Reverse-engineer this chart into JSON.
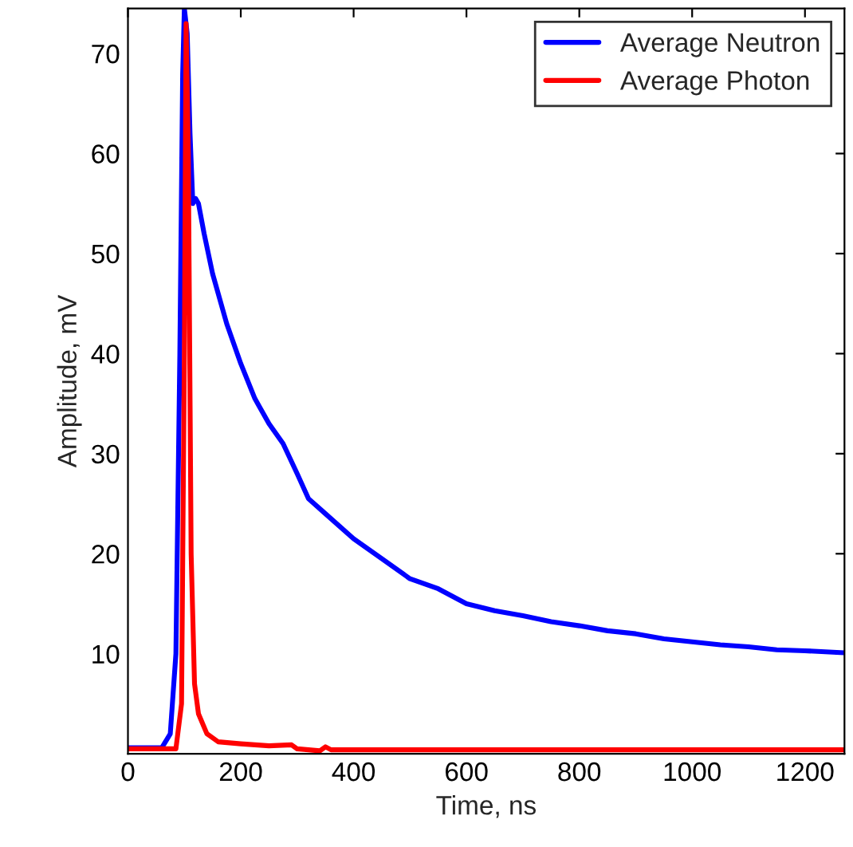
{
  "chart_data": {
    "type": "line",
    "xlabel": "Time, ns",
    "ylabel": "Amplitude, mV",
    "xlim": [
      0,
      1270
    ],
    "ylim": [
      0,
      74.5
    ],
    "xticks": [
      0,
      200,
      400,
      600,
      800,
      1000,
      1200
    ],
    "yticks": [
      10,
      20,
      30,
      40,
      50,
      60,
      70
    ],
    "legend": "top right",
    "grid": false,
    "series": [
      {
        "name": "Average Neutron",
        "color": "#0000ff",
        "x": [
          0,
          60,
          75,
          85,
          92,
          97,
          100,
          105,
          110,
          115,
          120,
          125,
          135,
          150,
          175,
          200,
          225,
          250,
          275,
          300,
          320,
          350,
          400,
          450,
          500,
          550,
          600,
          650,
          700,
          750,
          800,
          850,
          900,
          950,
          1000,
          1050,
          1100,
          1150,
          1200,
          1270
        ],
        "values": [
          0.6,
          0.6,
          2,
          10,
          40,
          68,
          74.5,
          72,
          62,
          55,
          55.5,
          55,
          52,
          48,
          43,
          39,
          35.5,
          33,
          31,
          28,
          25.5,
          24,
          21.5,
          19.5,
          17.5,
          16.5,
          15,
          14.3,
          13.8,
          13.2,
          12.8,
          12.3,
          12,
          11.5,
          11.2,
          10.9,
          10.7,
          10.4,
          10.3,
          10.1
        ]
      },
      {
        "name": "Average Photon",
        "color": "#ff0000",
        "x": [
          0,
          85,
          95,
          100,
          103,
          107,
          112,
          118,
          125,
          140,
          160,
          200,
          250,
          290,
          300,
          340,
          350,
          360,
          1270
        ],
        "values": [
          0.5,
          0.5,
          5,
          40,
          73,
          60,
          20,
          7,
          4,
          2,
          1.2,
          1,
          0.8,
          0.9,
          0.5,
          0.3,
          0.7,
          0.4,
          0.4
        ]
      }
    ]
  }
}
